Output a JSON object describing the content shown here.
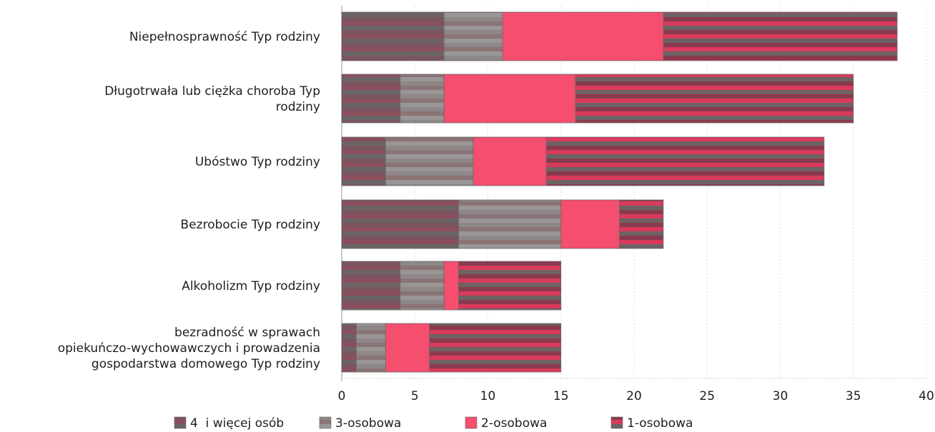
{
  "chart_data": {
    "type": "bar",
    "orientation": "horizontal",
    "stacked": true,
    "categories": [
      "Niepełnosprawność Typ rodziny",
      "Długotrwała lub ciężka choroba Typ rodziny",
      "Ubóstwo Typ rodziny",
      "Bezrobocie Typ rodziny",
      "Alkoholizm Typ rodziny",
      "bezradność w sprawach opiekuńczo-wychowawczych i prowadzenia gospodarstwa domowego Typ rodziny"
    ],
    "category_lines": [
      [
        "Niepełnosprawność Typ rodziny"
      ],
      [
        "Długotrwała lub ciężka choroba Typ",
        "rodziny"
      ],
      [
        "Ubóstwo Typ rodziny"
      ],
      [
        "Bezrobocie Typ rodziny"
      ],
      [
        "Alkoholizm Typ rodziny"
      ],
      [
        "bezradność w sprawach",
        "opiekuńczo-wychowawczych i prowadzenia",
        "gospodarstwa domowego Typ rodziny"
      ]
    ],
    "series": [
      {
        "name": "4  i więcej osób",
        "values": [
          7,
          4,
          3,
          8,
          4,
          1
        ],
        "color": "#7a5560"
      },
      {
        "name": "3-osobowa",
        "values": [
          4,
          3,
          6,
          7,
          3,
          2
        ],
        "color": "#8e8788"
      },
      {
        "name": "2-osobowa",
        "values": [
          11,
          9,
          5,
          4,
          1,
          3
        ],
        "color": "#f54e6e"
      },
      {
        "name": "1-osobowa",
        "values": [
          16,
          19,
          19,
          3,
          7,
          9
        ],
        "color": "#8a3a4e"
      }
    ],
    "xlim": [
      0,
      40
    ],
    "xticks": [
      0,
      5,
      10,
      15,
      20,
      25,
      30,
      35,
      40
    ],
    "grid": true,
    "legend": "bottom",
    "title": "",
    "xlabel": "",
    "ylabel": ""
  }
}
